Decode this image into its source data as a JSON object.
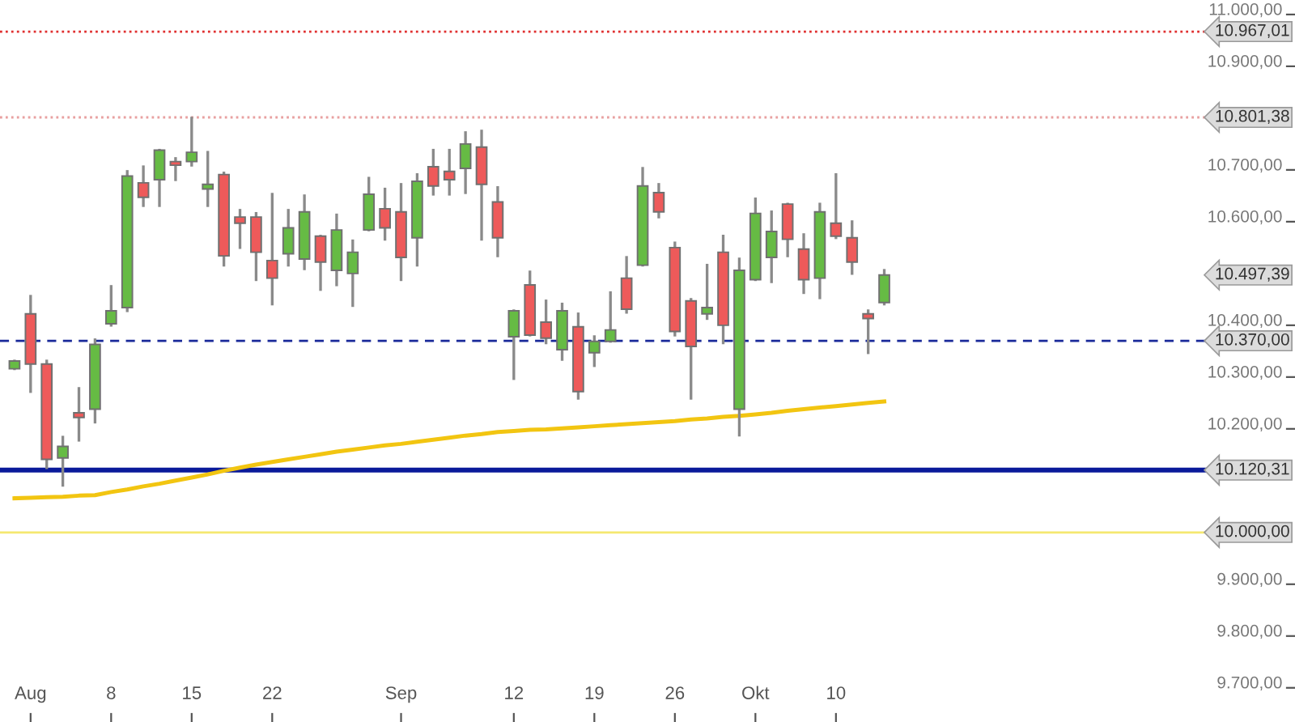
{
  "chart_data": {
    "type": "candlestick",
    "categories": [
      null,
      "Aug",
      null,
      null,
      null,
      null,
      "8",
      null,
      null,
      null,
      null,
      "15",
      null,
      null,
      null,
      null,
      "22",
      null,
      null,
      null,
      null,
      null,
      null,
      null,
      "Sep",
      null,
      null,
      null,
      null,
      null,
      null,
      "12",
      null,
      null,
      null,
      null,
      "19",
      null,
      null,
      null,
      null,
      "26",
      null,
      null,
      null,
      null,
      "Okt",
      null,
      null,
      null,
      null,
      "10",
      null,
      null,
      null
    ],
    "ohlc": [
      [
        10316,
        10331,
        10316,
        10331
      ],
      [
        10422,
        10456,
        10272,
        10325
      ],
      [
        10325,
        10331,
        10125,
        10141
      ],
      [
        10144,
        10184,
        10091,
        10166
      ],
      [
        10231,
        10278,
        10178,
        10222
      ],
      [
        10238,
        10372,
        10213,
        10363
      ],
      [
        10403,
        10475,
        10400,
        10428
      ],
      [
        10434,
        10697,
        10428,
        10688
      ],
      [
        10675,
        10706,
        10631,
        10647
      ],
      [
        10681,
        10738,
        10631,
        10738
      ],
      [
        10716,
        10722,
        10681,
        10709
      ],
      [
        10716,
        10800,
        10709,
        10734
      ],
      [
        10663,
        10734,
        10631,
        10672
      ],
      [
        10691,
        10694,
        10516,
        10534
      ],
      [
        10609,
        10622,
        10550,
        10597
      ],
      [
        10609,
        10616,
        10488,
        10541
      ],
      [
        10525,
        10653,
        10441,
        10491
      ],
      [
        10538,
        10622,
        10516,
        10588
      ],
      [
        10528,
        10650,
        10509,
        10619
      ],
      [
        10572,
        10572,
        10469,
        10522
      ],
      [
        10506,
        10613,
        10478,
        10584
      ],
      [
        10500,
        10563,
        10438,
        10541
      ],
      [
        10584,
        10684,
        10584,
        10653
      ],
      [
        10625,
        10663,
        10566,
        10588
      ],
      [
        10619,
        10672,
        10488,
        10531
      ],
      [
        10569,
        10691,
        10516,
        10678
      ],
      [
        10706,
        10738,
        10653,
        10669
      ],
      [
        10697,
        10738,
        10653,
        10681
      ],
      [
        10703,
        10772,
        10656,
        10750
      ],
      [
        10744,
        10775,
        10566,
        10672
      ],
      [
        10638,
        10666,
        10534,
        10569
      ],
      [
        10378,
        10428,
        10297,
        10428
      ],
      [
        10478,
        10503,
        10381,
        10381
      ],
      [
        10406,
        10447,
        10366,
        10375
      ],
      [
        10353,
        10441,
        10334,
        10428
      ],
      [
        10397,
        10422,
        10259,
        10272
      ],
      [
        10347,
        10378,
        10322,
        10369
      ],
      [
        10369,
        10463,
        10369,
        10391
      ],
      [
        10491,
        10531,
        10425,
        10431
      ],
      [
        10516,
        10703,
        10516,
        10669
      ],
      [
        10656,
        10672,
        10609,
        10619
      ],
      [
        10550,
        10559,
        10381,
        10388
      ],
      [
        10447,
        10450,
        10259,
        10359
      ],
      [
        10422,
        10516,
        10413,
        10434
      ],
      [
        10541,
        10572,
        10366,
        10400
      ],
      [
        10238,
        10528,
        10188,
        10506
      ],
      [
        10488,
        10644,
        10488,
        10616
      ],
      [
        10531,
        10619,
        10484,
        10581
      ],
      [
        10634,
        10634,
        10534,
        10566
      ],
      [
        10547,
        10575,
        10463,
        10488
      ],
      [
        10491,
        10634,
        10453,
        10619
      ],
      [
        10597,
        10691,
        10569,
        10572
      ],
      [
        10569,
        10600,
        10500,
        10522
      ],
      [
        10422,
        10428,
        10347,
        10413
      ],
      [
        10444,
        10506,
        10441,
        10497
      ]
    ],
    "colors": [
      "#66bb44",
      "#ee5a5a",
      "#ee5a5a",
      "#66bb44",
      "#ee5a5a",
      "#66bb44",
      "#66bb44",
      "#66bb44",
      "#ee5a5a",
      "#66bb44",
      "#ee5a5a",
      "#66bb44",
      "#66bb44",
      "#ee5a5a",
      "#ee5a5a",
      "#ee5a5a",
      "#ee5a5a",
      "#66bb44",
      "#66bb44",
      "#ee5a5a",
      "#66bb44",
      "#66bb44",
      "#66bb44",
      "#ee5a5a",
      "#ee5a5a",
      "#66bb44",
      "#ee5a5a",
      "#ee5a5a",
      "#66bb44",
      "#ee5a5a",
      "#ee5a5a",
      "#66bb44",
      "#ee5a5a",
      "#ee5a5a",
      "#66bb44",
      "#ee5a5a",
      "#66bb44",
      "#66bb44",
      "#ee5a5a",
      "#66bb44",
      "#ee5a5a",
      "#ee5a5a",
      "#ee5a5a",
      "#66bb44",
      "#ee5a5a",
      "#66bb44",
      "#66bb44",
      "#66bb44",
      "#ee5a5a",
      "#ee5a5a",
      "#66bb44",
      "#ee5a5a",
      "#ee5a5a",
      "#ee5a5a",
      "#66bb44"
    ],
    "series": [
      {
        "type": "line",
        "color": "#f2c511",
        "values": [
          10066,
          10067,
          10068,
          10069,
          10071,
          10072,
          10078,
          10083,
          10089,
          10094,
          10100,
          10106,
          10112,
          10119,
          10125,
          10131,
          10136,
          10141,
          10146,
          10151,
          10156,
          10160,
          10164,
          10168,
          10171,
          10175,
          10179,
          10183,
          10187,
          10190,
          10194,
          10196,
          10198,
          10199,
          10201,
          10203,
          10205,
          10207,
          10209,
          10211,
          10213,
          10215,
          10218,
          10220,
          10223,
          10225,
          10228,
          10231,
          10235,
          10238,
          10241,
          10244,
          10247,
          10250,
          10253
        ]
      }
    ],
    "ylim": [
      9634,
      11028
    ],
    "yticks": [
      {
        "value": 11000,
        "label": "11.000,00"
      },
      {
        "value": 10900,
        "label": "10.900,00"
      },
      {
        "value": 10700,
        "label": "10.700,00"
      },
      {
        "value": 10600,
        "label": "10.600,00"
      },
      {
        "value": 10400,
        "label": "10.400,00"
      },
      {
        "value": 10300,
        "label": "10.300,00"
      },
      {
        "value": 10200,
        "label": "10.200,00"
      },
      {
        "value": 9900,
        "label": "9.900,00"
      },
      {
        "value": 9800,
        "label": "9.800,00"
      },
      {
        "value": 9700,
        "label": "9.700,00"
      }
    ],
    "ref_lines": [
      {
        "axis": "y",
        "value": 10967.01,
        "label": "10.967,01",
        "color": "#e03030",
        "line_style": "dotted"
      },
      {
        "axis": "y",
        "value": 10801.38,
        "label": "10.801,38",
        "color": "#e8a0a0",
        "line_style": "dotted"
      },
      {
        "axis": "y",
        "value": 10370.0,
        "label": "10.370,00",
        "color": "#1a2a9a",
        "line_style": "dashed"
      },
      {
        "axis": "y",
        "value": 10120.31,
        "label": "10.120,31",
        "color": "#0a1a9a",
        "line_style": "solid"
      },
      {
        "axis": "y",
        "value": 10000.0,
        "label": "10.000,00",
        "color": "#f5e870",
        "line_style": "solid"
      }
    ],
    "annotations": [
      "10.497,39"
    ],
    "grid": false
  }
}
